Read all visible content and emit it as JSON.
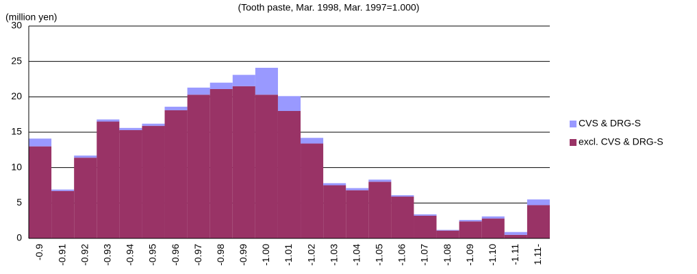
{
  "chart_data": {
    "type": "stacked_bar",
    "title": "(Tooth paste, Mar. 1998, Mar. 1997=1.000)",
    "y_label": "(million yen)",
    "categories": [
      "-0.9",
      "-0.91",
      "-0.92",
      "-0.93",
      "-0.94",
      "-0.95",
      "-0.96",
      "-0.97",
      "-0.98",
      "-0.99",
      "-1.00",
      "-1.01",
      "-1.02",
      "-1.03",
      "-1.04",
      "-1.05",
      "-1.06",
      "-1.07",
      "-1.08",
      "-1.09",
      "-1.10",
      "-1.11",
      "1.11-"
    ],
    "series": [
      {
        "name": "CVS & DRG-S",
        "color": "#9999ff",
        "values": [
          1.1,
          0.2,
          0.3,
          0.3,
          0.3,
          0.3,
          0.5,
          1.0,
          0.9,
          1.6,
          3.8,
          2.1,
          0.8,
          0.3,
          0.3,
          0.3,
          0.2,
          0.2,
          0.1,
          0.2,
          0.3,
          0.4,
          0.8
        ]
      },
      {
        "name": "excl. CVS & DRG-S",
        "color": "#993366",
        "values": [
          13.0,
          6.7,
          11.4,
          16.5,
          15.3,
          15.9,
          18.1,
          20.3,
          21.1,
          21.5,
          20.3,
          18.0,
          13.4,
          7.5,
          6.8,
          8.0,
          5.9,
          3.2,
          1.1,
          2.4,
          2.8,
          0.5,
          4.7
        ]
      }
    ],
    "ylim": [
      0,
      30
    ],
    "yticks": [
      0,
      5,
      10,
      15,
      20,
      25,
      30
    ],
    "grid": true,
    "legend": "right"
  }
}
